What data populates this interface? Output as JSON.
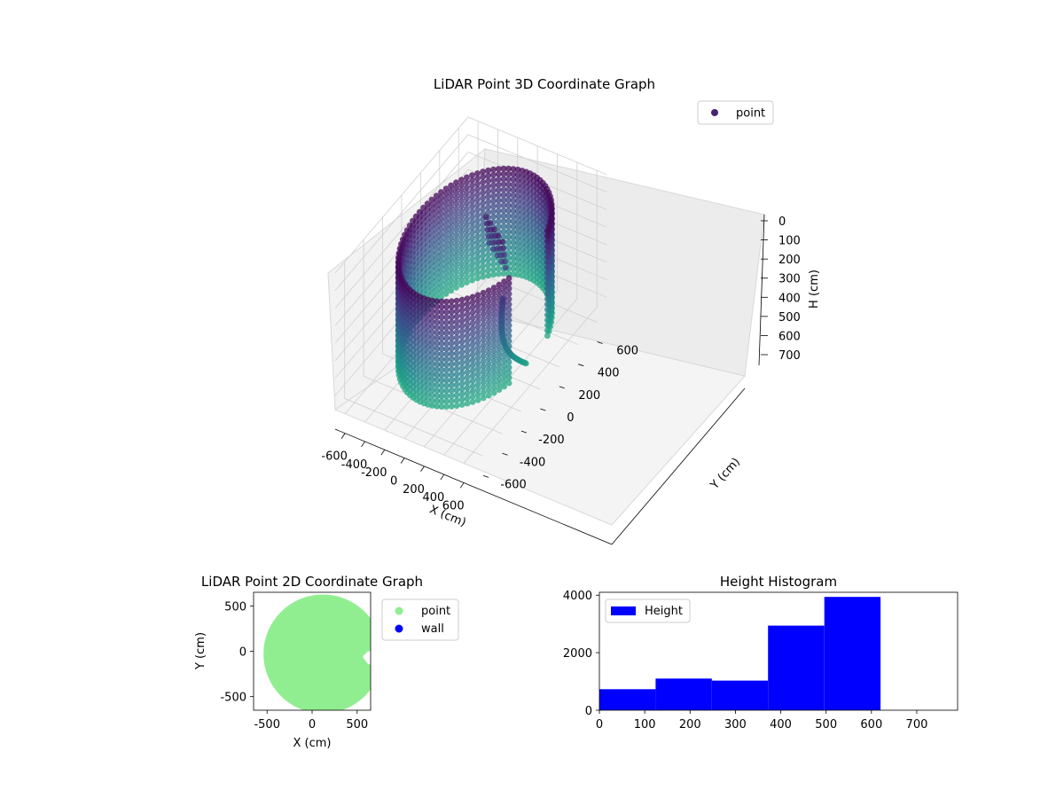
{
  "chart_data": [
    {
      "type": "scatter",
      "title": "LiDAR Point 3D Coordinate Graph",
      "xlabel": "X (cm)",
      "ylabel": "Y (cm)",
      "zlabel": "H (cm)",
      "xticks": [
        -600,
        -400,
        -200,
        0,
        200,
        400,
        600
      ],
      "yticks": [
        -600,
        -400,
        -200,
        0,
        200,
        400,
        600
      ],
      "zticks": [
        0,
        100,
        200,
        300,
        400,
        500,
        600,
        700
      ],
      "xlim": [
        -700,
        700
      ],
      "ylim": [
        -700,
        700
      ],
      "zlim": [
        0,
        780
      ],
      "z_inverted": true,
      "series": [
        {
          "name": "point",
          "color": "#482173",
          "colormap": "viridis"
        }
      ],
      "legend": "top-right",
      "grid": true,
      "shape": {
        "wall_radius": 560,
        "wall_height": 620,
        "gap_from_deg": -18,
        "gap_to_deg": 22
      }
    },
    {
      "type": "scatter",
      "title": "LiDAR Point 2D Coordinate Graph",
      "xlabel": "X (cm)",
      "ylabel": "Y (cm)",
      "xticks": [
        -500,
        0,
        500
      ],
      "yticks": [
        -500,
        0,
        500
      ],
      "xlim": [
        -650,
        650
      ],
      "ylim": [
        -650,
        650
      ],
      "series": [
        {
          "name": "point",
          "color": "#90ee90"
        },
        {
          "name": "wall",
          "color": "#0000ff"
        }
      ],
      "legend": "outside-right",
      "grid": false,
      "shape": {
        "center": [
          120,
          -30
        ],
        "radius": 660
      }
    },
    {
      "type": "bar",
      "title": "Height Histogram",
      "xticks": [
        0,
        100,
        200,
        300,
        400,
        500,
        600,
        700
      ],
      "yticks": [
        0,
        2000,
        4000
      ],
      "xlim": [
        0,
        790
      ],
      "ylim": [
        0,
        4100
      ],
      "series": [
        {
          "name": "Height",
          "color": "#0000ff"
        }
      ],
      "bins": [
        {
          "x0": 0,
          "x1": 124,
          "value": 730
        },
        {
          "x0": 124,
          "x1": 248,
          "value": 1100
        },
        {
          "x0": 248,
          "x1": 372,
          "value": 1030
        },
        {
          "x0": 372,
          "x1": 496,
          "value": 2940
        },
        {
          "x0": 496,
          "x1": 620,
          "value": 3940
        }
      ],
      "legend": "top-left",
      "grid": false
    }
  ]
}
